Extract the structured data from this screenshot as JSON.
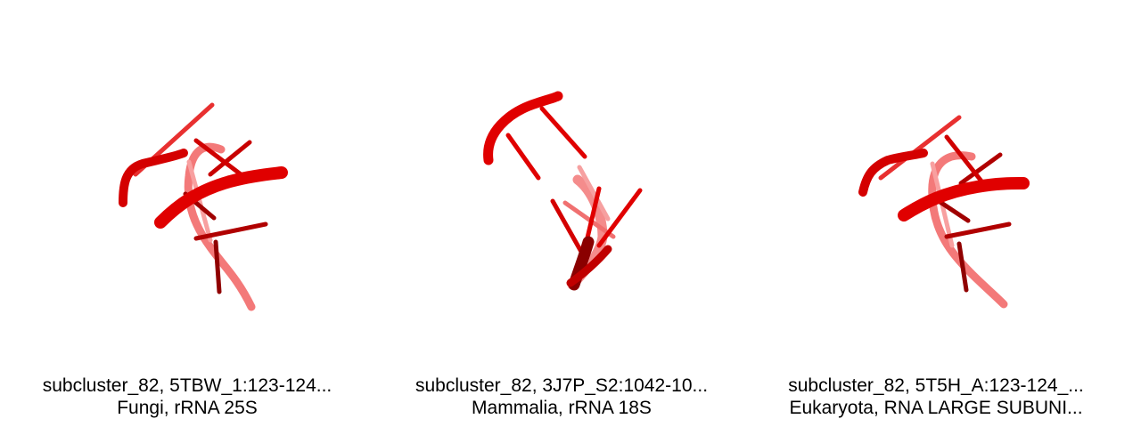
{
  "panels": [
    {
      "line1": "subcluster_82, 5TBW_1:123-124...",
      "line2": "Fungi, rRNA 25S",
      "structure_icon": "rna-backbone-cartoon"
    },
    {
      "line1": "subcluster_82, 3J7P_S2:1042-10...",
      "line2": "Mammalia, rRNA 18S",
      "structure_icon": "rna-backbone-cartoon"
    },
    {
      "line1": "subcluster_82, 5T5H_A:123-124_...",
      "line2": "Eukaryota, RNA LARGE SUBUNI...",
      "structure_icon": "rna-backbone-cartoon"
    }
  ],
  "colors": {
    "backbone_front": "#e00000",
    "backbone_back": "#f26a6a",
    "backbone_dark": "#9b0000"
  }
}
